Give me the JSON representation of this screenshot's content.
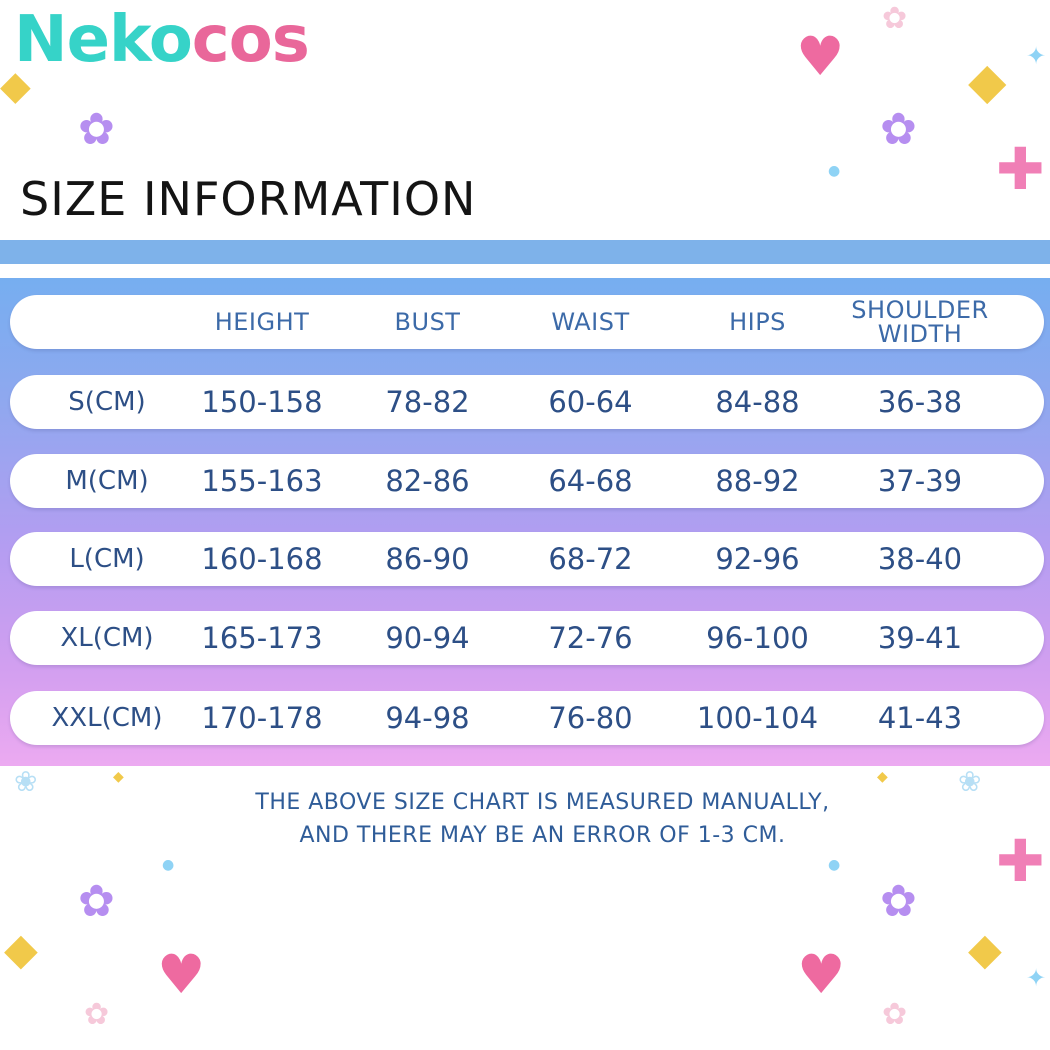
{
  "logo": {
    "part1": "Neko",
    "part2": "cos"
  },
  "title": "SIZE INFORMATION",
  "table": {
    "headers": [
      "HEIGHT",
      "BUST",
      "WAIST",
      "HIPS",
      "SHOULDER",
      "WIDTH"
    ],
    "rows": [
      {
        "size": "S(CM)",
        "height": "150-158",
        "bust": "78-82",
        "waist": "60-64",
        "hips": "84-88",
        "shoulder": "36-38"
      },
      {
        "size": "M(CM)",
        "height": "155-163",
        "bust": "82-86",
        "waist": "64-68",
        "hips": "88-92",
        "shoulder": "37-39"
      },
      {
        "size": "L(CM)",
        "height": "160-168",
        "bust": "86-90",
        "waist": "68-72",
        "hips": "92-96",
        "shoulder": "38-40"
      },
      {
        "size": "XL(CM)",
        "height": "165-173",
        "bust": "90-94",
        "waist": "72-76",
        "hips": "96-100",
        "shoulder": "39-41"
      },
      {
        "size": "XXL(CM)",
        "height": "170-178",
        "bust": "94-98",
        "waist": "76-80",
        "hips": "100-104",
        "shoulder": "41-43"
      }
    ]
  },
  "note": {
    "line1": "THE ABOVE SIZE CHART IS MEASURED MANUALLY,",
    "line2": "AND THERE MAY BE AN ERROR OF 1-3 CM."
  },
  "colors": {
    "logo_teal": "#36d3c8",
    "logo_pink": "#e9679a",
    "band": "#7eb2ea",
    "text_blue": "#2d4f86"
  },
  "icons": [
    "heart-icon",
    "flower-icon",
    "sparkle-icon",
    "cross-icon",
    "dot-icon"
  ]
}
